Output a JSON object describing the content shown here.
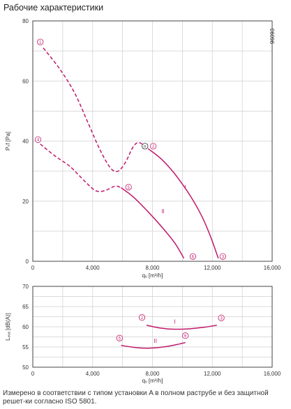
{
  "title": "Рабочие характеристики",
  "doc_id": "96093",
  "footnote": "Измерено в соответствии с типом установки A в полном раструбе и без защитной решет-ки согласно ISO 5801.",
  "colors": {
    "curve": "#c0186b",
    "grid": "#cfcfcf",
    "axis": "#333333"
  },
  "chart_data": [
    {
      "type": "line",
      "x_unit_label": "qᵥ [m³/h]",
      "y_label": "Pₛf [Pa]",
      "xlim": [
        0,
        16000
      ],
      "ylim": [
        0,
        80
      ],
      "xticks": [
        0,
        4000,
        8000,
        12000,
        16000
      ],
      "xtick_labels": [
        "0",
        "4,000",
        "8,000",
        "12,000",
        "16,000"
      ],
      "yticks": [
        0,
        20,
        40,
        60,
        80
      ],
      "grid": true,
      "series": [
        {
          "name": "I",
          "style": "solid",
          "points": [
            [
              7700,
              37.5
            ],
            [
              8600,
              34
            ],
            [
              9500,
              29
            ],
            [
              10500,
              22
            ],
            [
              11300,
              15
            ],
            [
              11900,
              8
            ],
            [
              12400,
              1
            ]
          ]
        },
        {
          "name": "I",
          "style": "dashed",
          "points": [
            [
              700,
              71
            ],
            [
              1800,
              64
            ],
            [
              2800,
              56
            ],
            [
              3700,
              46
            ],
            [
              4500,
              37
            ],
            [
              5200,
              31
            ],
            [
              5700,
              30
            ],
            [
              6200,
              33
            ],
            [
              6700,
              38
            ],
            [
              7100,
              39.5
            ],
            [
              7700,
              37.5
            ]
          ]
        },
        {
          "name": "II",
          "style": "solid",
          "points": [
            [
              5900,
              24.5
            ],
            [
              6700,
              21.5
            ],
            [
              7700,
              16.5
            ],
            [
              8700,
              11
            ],
            [
              9500,
              6
            ],
            [
              10100,
              1
            ]
          ]
        },
        {
          "name": "II",
          "style": "dashed",
          "points": [
            [
              500,
              39
            ],
            [
              1500,
              35
            ],
            [
              2500,
              31.5
            ],
            [
              3500,
              26.5
            ],
            [
              4200,
              23.5
            ],
            [
              4800,
              23.5
            ],
            [
              5500,
              25
            ],
            [
              5900,
              24.5
            ]
          ]
        }
      ],
      "markers": [
        {
          "label": "1",
          "x": 500,
          "y": 73
        },
        {
          "label": "4",
          "x": 350,
          "y": 40.5
        },
        {
          "label": "n",
          "x": 7500,
          "y": 38.3
        },
        {
          "label": "2",
          "x": 8050,
          "y": 38.3
        },
        {
          "label": "5",
          "x": 6400,
          "y": 24.7
        },
        {
          "label": "6",
          "x": 10700,
          "y": 1.6
        },
        {
          "label": "3",
          "x": 12700,
          "y": 1.6
        }
      ],
      "curve_labels": [
        {
          "text": "I",
          "x": 10200,
          "y": 24
        },
        {
          "text": "II",
          "x": 8700,
          "y": 16
        }
      ]
    },
    {
      "type": "line",
      "x_unit_label": "qᵥ [m³/h]",
      "y_label": "Lᵥᵥₐ [dB(A)]",
      "xlim": [
        0,
        16000
      ],
      "ylim": [
        50,
        70
      ],
      "xticks": [
        0,
        4000,
        8000,
        12000,
        16000
      ],
      "xtick_labels": [
        "0",
        "4,000",
        "8,000",
        "12,000",
        "16,000"
      ],
      "yticks": [
        50,
        55,
        60,
        65,
        70
      ],
      "grid": true,
      "series": [
        {
          "name": "I",
          "style": "solid",
          "points": [
            [
              7600,
              60.4
            ],
            [
              8500,
              59.7
            ],
            [
              9500,
              59.4
            ],
            [
              10500,
              59.5
            ],
            [
              11500,
              59.9
            ],
            [
              12300,
              60.4
            ]
          ]
        },
        {
          "name": "II",
          "style": "solid",
          "points": [
            [
              5900,
              55.4
            ],
            [
              6800,
              54.9
            ],
            [
              7700,
              54.7
            ],
            [
              8700,
              55.0
            ],
            [
              9500,
              55.5
            ],
            [
              10200,
              56.1
            ]
          ]
        }
      ],
      "markers": [
        {
          "label": "2",
          "x": 7300,
          "y": 62.3
        },
        {
          "label": "3",
          "x": 12600,
          "y": 62.2
        },
        {
          "label": "5",
          "x": 5800,
          "y": 57.2
        },
        {
          "label": "6",
          "x": 10200,
          "y": 57.8
        }
      ],
      "curve_labels": [
        {
          "text": "I",
          "x": 9500,
          "y": 60.8
        },
        {
          "text": "II",
          "x": 8200,
          "y": 56.0
        }
      ]
    }
  ]
}
